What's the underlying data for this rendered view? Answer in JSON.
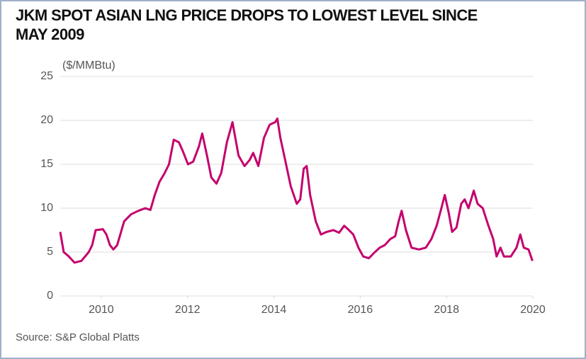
{
  "chart_data": {
    "type": "line",
    "title": "JKM SPOT ASIAN LNG PRICE DROPS TO LOWEST LEVEL SINCE MAY 2009",
    "y_label": "($/MMBtu)",
    "source": "Source: S&P Global Platts",
    "xlim": [
      2009,
      2020
    ],
    "xticks": [
      2010,
      2012,
      2014,
      2016,
      2018,
      2020
    ],
    "ylim": [
      0,
      25
    ],
    "yticks": [
      0,
      5,
      10,
      15,
      20,
      25
    ],
    "grid": true,
    "series": [
      {
        "color": "#c4006c",
        "x": [
          2009.05,
          2009.13,
          2009.25,
          2009.38,
          2009.54,
          2009.71,
          2009.79,
          2009.87,
          2010.04,
          2010.12,
          2010.2,
          2010.28,
          2010.37,
          2010.53,
          2010.69,
          2010.86,
          2011.02,
          2011.14,
          2011.24,
          2011.35,
          2011.47,
          2011.57,
          2011.68,
          2011.8,
          2011.89,
          2012.01,
          2012.13,
          2012.26,
          2012.34,
          2012.45,
          2012.55,
          2012.67,
          2012.78,
          2012.91,
          2013.04,
          2013.18,
          2013.32,
          2013.44,
          2013.52,
          2013.64,
          2013.77,
          2013.9,
          2014.03,
          2014.08,
          2014.15,
          2014.26,
          2014.39,
          2014.53,
          2014.61,
          2014.69,
          2014.76,
          2014.84,
          2014.97,
          2015.09,
          2015.22,
          2015.38,
          2015.51,
          2015.63,
          2015.74,
          2015.84,
          2015.96,
          2016.07,
          2016.2,
          2016.34,
          2016.45,
          2016.57,
          2016.7,
          2016.81,
          2016.89,
          2016.96,
          2017.06,
          2017.19,
          2017.36,
          2017.52,
          2017.65,
          2017.77,
          2017.88,
          2017.96,
          2018.05,
          2018.13,
          2018.23,
          2018.34,
          2018.42,
          2018.51,
          2018.63,
          2018.72,
          2018.84,
          2018.97,
          2019.08,
          2019.16,
          2019.25,
          2019.33,
          2019.49,
          2019.62,
          2019.71,
          2019.79,
          2019.9,
          2019.99
        ],
        "values": [
          7.3,
          5.0,
          4.5,
          3.8,
          4.0,
          5.0,
          5.8,
          7.5,
          7.6,
          7.0,
          5.8,
          5.3,
          5.8,
          8.5,
          9.3,
          9.7,
          10.0,
          9.8,
          11.5,
          13.0,
          14.0,
          15.0,
          17.8,
          17.5,
          16.5,
          15.0,
          15.3,
          17.0,
          18.5,
          16.0,
          13.5,
          12.8,
          14.0,
          17.5,
          19.8,
          16.0,
          14.8,
          15.5,
          16.3,
          14.8,
          18.0,
          19.5,
          19.8,
          20.2,
          18.0,
          15.5,
          12.5,
          10.5,
          11.0,
          14.5,
          14.8,
          11.5,
          8.5,
          7.0,
          7.3,
          7.5,
          7.2,
          8.0,
          7.5,
          7.0,
          5.5,
          4.5,
          4.3,
          5.0,
          5.5,
          5.8,
          6.5,
          6.8,
          8.5,
          9.7,
          7.5,
          5.5,
          5.3,
          5.5,
          6.5,
          8.0,
          10.0,
          11.5,
          9.5,
          7.3,
          7.8,
          10.5,
          11.0,
          10.0,
          12.0,
          10.5,
          10.0,
          8.0,
          6.5,
          4.5,
          5.5,
          4.5,
          4.5,
          5.5,
          7.0,
          5.5,
          5.3,
          4.0
        ]
      }
    ]
  }
}
